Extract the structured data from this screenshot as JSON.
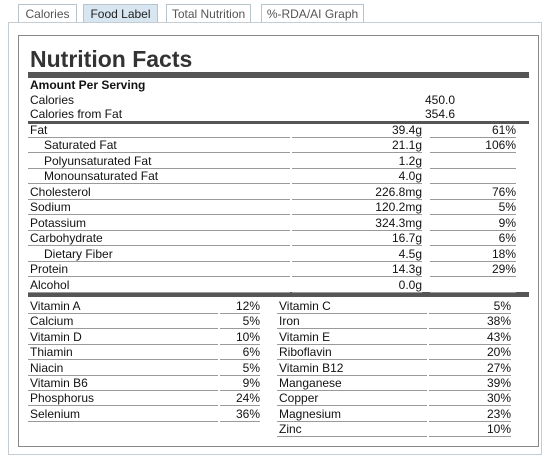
{
  "tabs": [
    "Calories",
    "Food Label",
    "Total Nutrition",
    "%-RDA/AI Graph"
  ],
  "label": {
    "title": "Nutrition Facts",
    "amount_per_serving": "Amount Per Serving",
    "calories": {
      "name": "Calories",
      "value": "450.0"
    },
    "calories_from_fat": {
      "name": "Calories from Fat",
      "value": "354.6"
    },
    "nutrients": [
      {
        "name": "Fat",
        "amount": "39.4g",
        "percent": "61%"
      },
      {
        "name": "Saturated Fat",
        "amount": "21.1g",
        "percent": "106%"
      },
      {
        "name": "Polyunsaturated Fat",
        "amount": "1.2g"
      },
      {
        "name": "Monounsaturated Fat",
        "amount": "4.0g"
      },
      {
        "name": "Cholesterol",
        "amount": "226.8mg",
        "percent": "76%"
      },
      {
        "name": "Sodium",
        "amount": "120.2mg",
        "percent": "5%"
      },
      {
        "name": "Potassium",
        "amount": "324.3mg",
        "percent": "9%"
      },
      {
        "name": "Carbohydrate",
        "amount": "16.7g",
        "percent": "6%"
      },
      {
        "name": "Dietary Fiber",
        "amount": "4.5g",
        "percent": "18%"
      },
      {
        "name": "Protein",
        "amount": "14.3g",
        "percent": "29%"
      },
      {
        "name": "Alcohol",
        "amount": "0.0g"
      }
    ],
    "vitamins_left": [
      {
        "name": "Vitamin A",
        "percent": "12%"
      },
      {
        "name": "Calcium",
        "percent": "5%"
      },
      {
        "name": "Vitamin D",
        "percent": "10%"
      },
      {
        "name": "Thiamin",
        "percent": "6%"
      },
      {
        "name": "Niacin",
        "percent": "5%"
      },
      {
        "name": "Vitamin B6",
        "percent": "9%"
      },
      {
        "name": "Phosphorus",
        "percent": "24%"
      },
      {
        "name": "Selenium",
        "percent": "36%"
      }
    ],
    "vitamins_right": [
      {
        "name": "Vitamin C",
        "percent": "5%"
      },
      {
        "name": "Iron",
        "percent": "38%"
      },
      {
        "name": "Vitamin E",
        "percent": "43%"
      },
      {
        "name": "Riboflavin",
        "percent": "20%"
      },
      {
        "name": "Vitamin B12",
        "percent": "27%"
      },
      {
        "name": "Manganese",
        "percent": "39%"
      },
      {
        "name": "Copper",
        "percent": "30%"
      },
      {
        "name": "Magnesium",
        "percent": "23%"
      },
      {
        "name": "Zinc",
        "percent": "10%"
      }
    ]
  }
}
